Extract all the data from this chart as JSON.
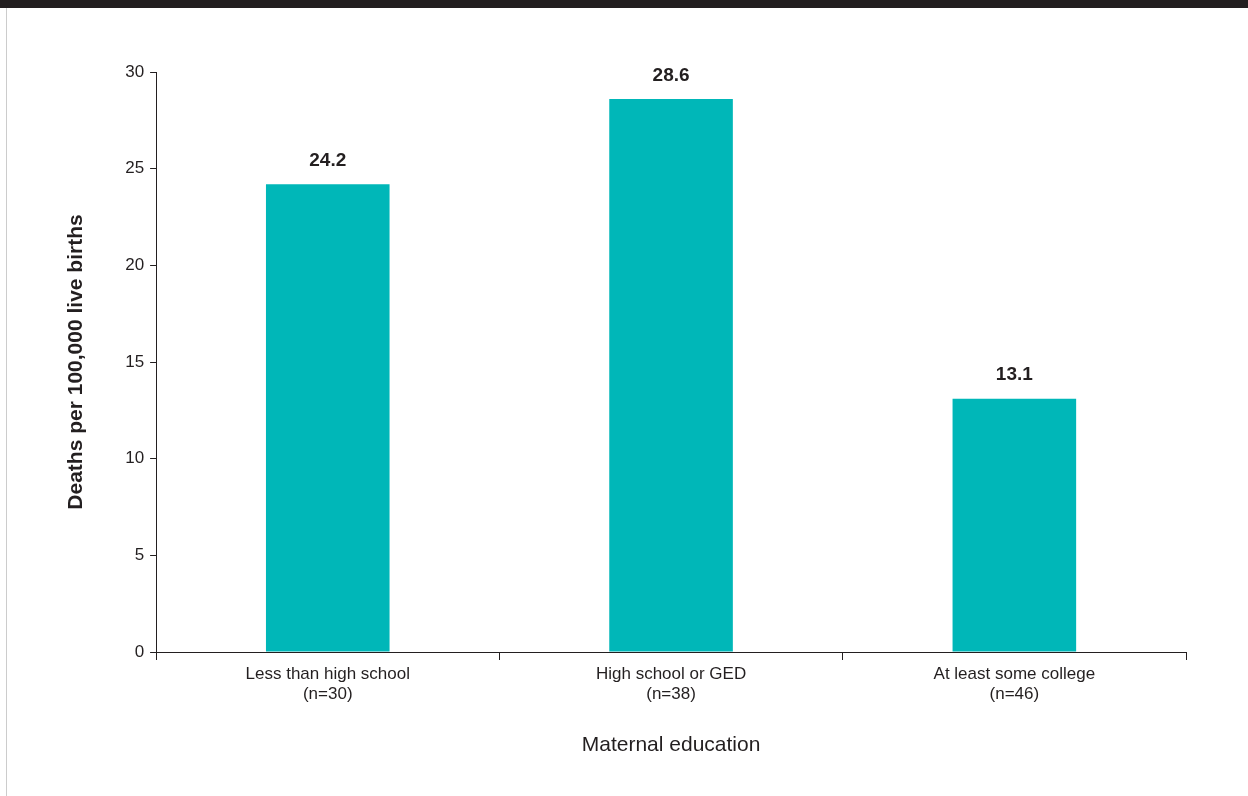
{
  "chart_data": {
    "type": "bar",
    "xlabel": "Maternal education",
    "ylabel": "Deaths per 100,000 live births",
    "categories": [
      "Less than high school\n(n=30)",
      "High school or GED\n(n=38)",
      "At least some college\n(n=46)"
    ],
    "values": [
      24.2,
      28.6,
      13.1
    ],
    "color": "#00b7b8",
    "ylim": [
      0,
      30
    ],
    "yticks": [
      0,
      5,
      10,
      15,
      20,
      25,
      30
    ],
    "grid": false,
    "legend": false,
    "data_labels": true
  }
}
